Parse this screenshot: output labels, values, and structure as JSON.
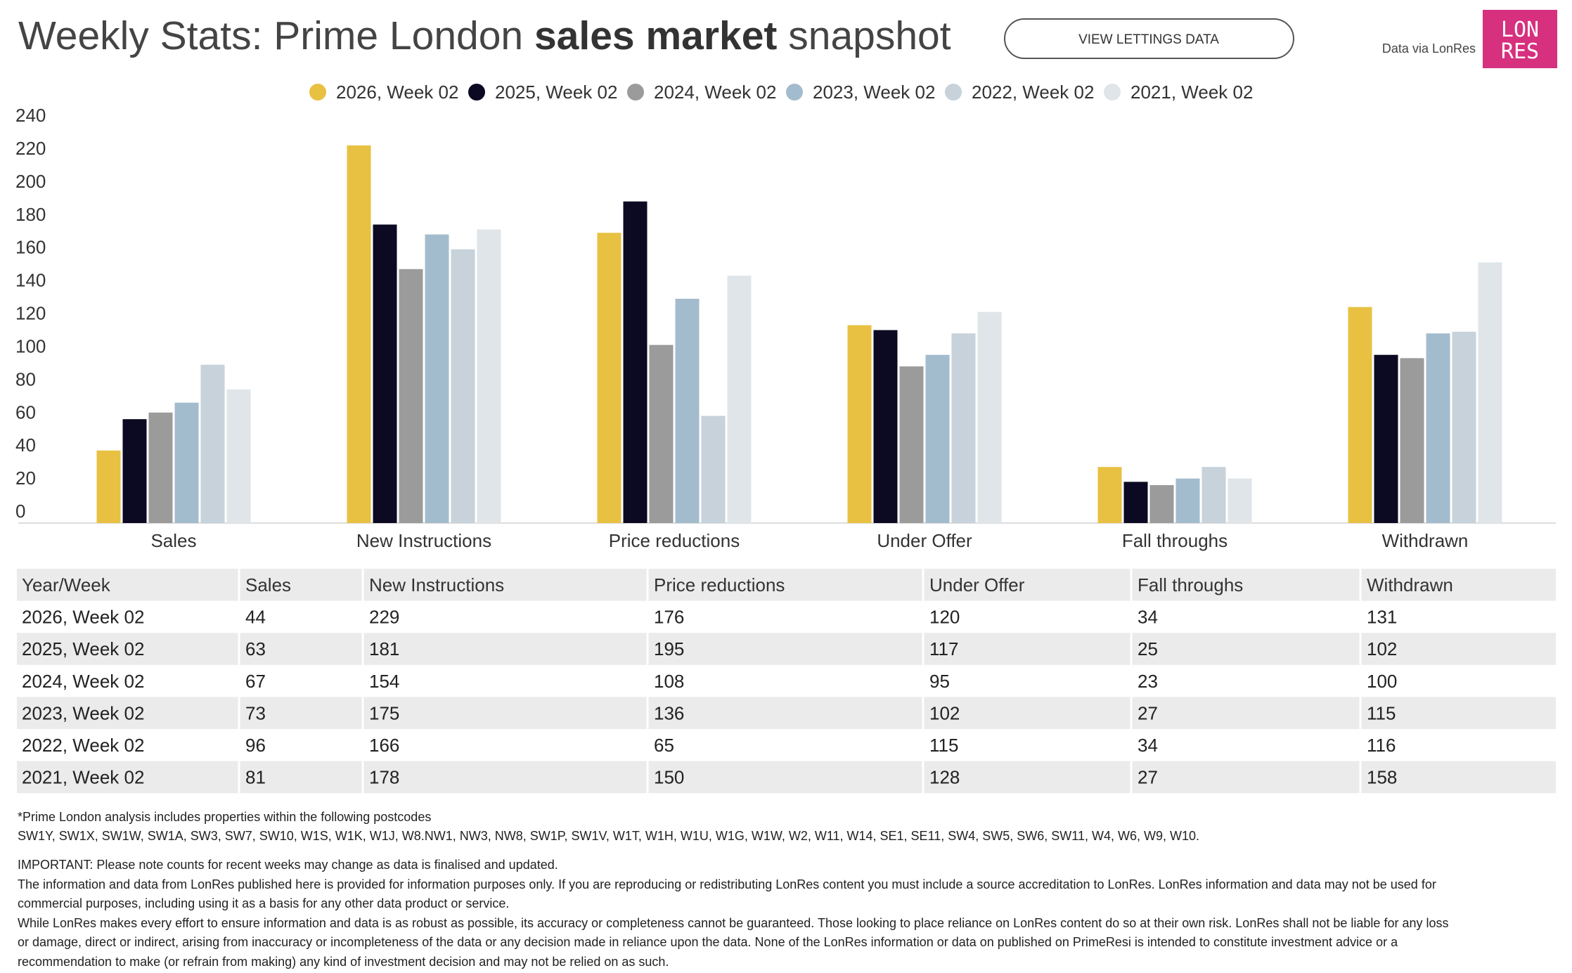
{
  "header": {
    "title": [
      "Weekly Stats: Prime London ",
      "sales market",
      " snapshot"
    ],
    "button": "VIEW LETTINGS DATA",
    "source": "Data via LonRes",
    "logo": [
      "LON",
      "RES"
    ]
  },
  "chart_data": {
    "type": "bar",
    "categories": [
      "Sales",
      "New Instructions",
      "Price reductions",
      "Under Offer",
      "Fall throughs",
      "Withdrawn"
    ],
    "series": [
      {
        "name": "2026, Week 02",
        "color": "#e8c143",
        "values": [
          44,
          229,
          176,
          120,
          34,
          131
        ]
      },
      {
        "name": "2025, Week 02",
        "color": "#0c0a22",
        "values": [
          63,
          181,
          195,
          117,
          25,
          102
        ]
      },
      {
        "name": "2024, Week 02",
        "color": "#9b9b9b",
        "values": [
          67,
          154,
          108,
          95,
          23,
          100
        ]
      },
      {
        "name": "2023, Week 02",
        "color": "#a3bccd",
        "values": [
          73,
          175,
          136,
          102,
          27,
          115
        ]
      },
      {
        "name": "2022, Week 02",
        "color": "#c7d2da",
        "values": [
          96,
          166,
          65,
          115,
          34,
          116
        ]
      },
      {
        "name": "2021, Week 02",
        "color": "#dfe5e9",
        "values": [
          81,
          178,
          150,
          128,
          27,
          158
        ]
      }
    ],
    "ylim": [
      0,
      240
    ],
    "yticks": [
      0,
      20,
      40,
      60,
      80,
      100,
      120,
      140,
      160,
      180,
      200,
      220,
      240
    ],
    "legend": "top"
  },
  "table": {
    "first_header": "Year/Week"
  },
  "notes": [
    "*Prime London analysis includes properties within the following postcodes",
    "SW1Y, SW1X, SW1W, SW1A, SW3, SW7, SW10, W1S, W1K, W1J, W8.NW1, NW3, NW8, SW1P, SW1V, W1T, W1H, W1U, W1G, W1W, W2, W11, W14, SE1, SE11, SW4, SW5, SW6, SW11, W4, W6, W9, W10.",
    "IMPORTANT: Please note counts for recent weeks may change as data is finalised and updated.",
    "The information and data from LonRes published here is provided for information purposes only. If you are reproducing or redistributing LonRes content you must include a source accreditation to LonRes. LonRes information and data may not be used for",
    "commercial purposes, including using it as a basis for any other data product or service.",
    "While LonRes makes every effort to ensure information and data is as robust as possible, its accuracy or completeness cannot be guaranteed. Those looking to place reliance on LonRes content do so at their own risk. LonRes shall not be liable for any loss",
    "or damage, direct or indirect, arising from inaccuracy or incompleteness of the data or any decision made in reliance upon the data. None of the LonRes information or data on published on PrimeResi is intended to constitute investment advice or a",
    "recommendation to make (or refrain from making) any kind of investment decision and may not be relied on as such."
  ]
}
